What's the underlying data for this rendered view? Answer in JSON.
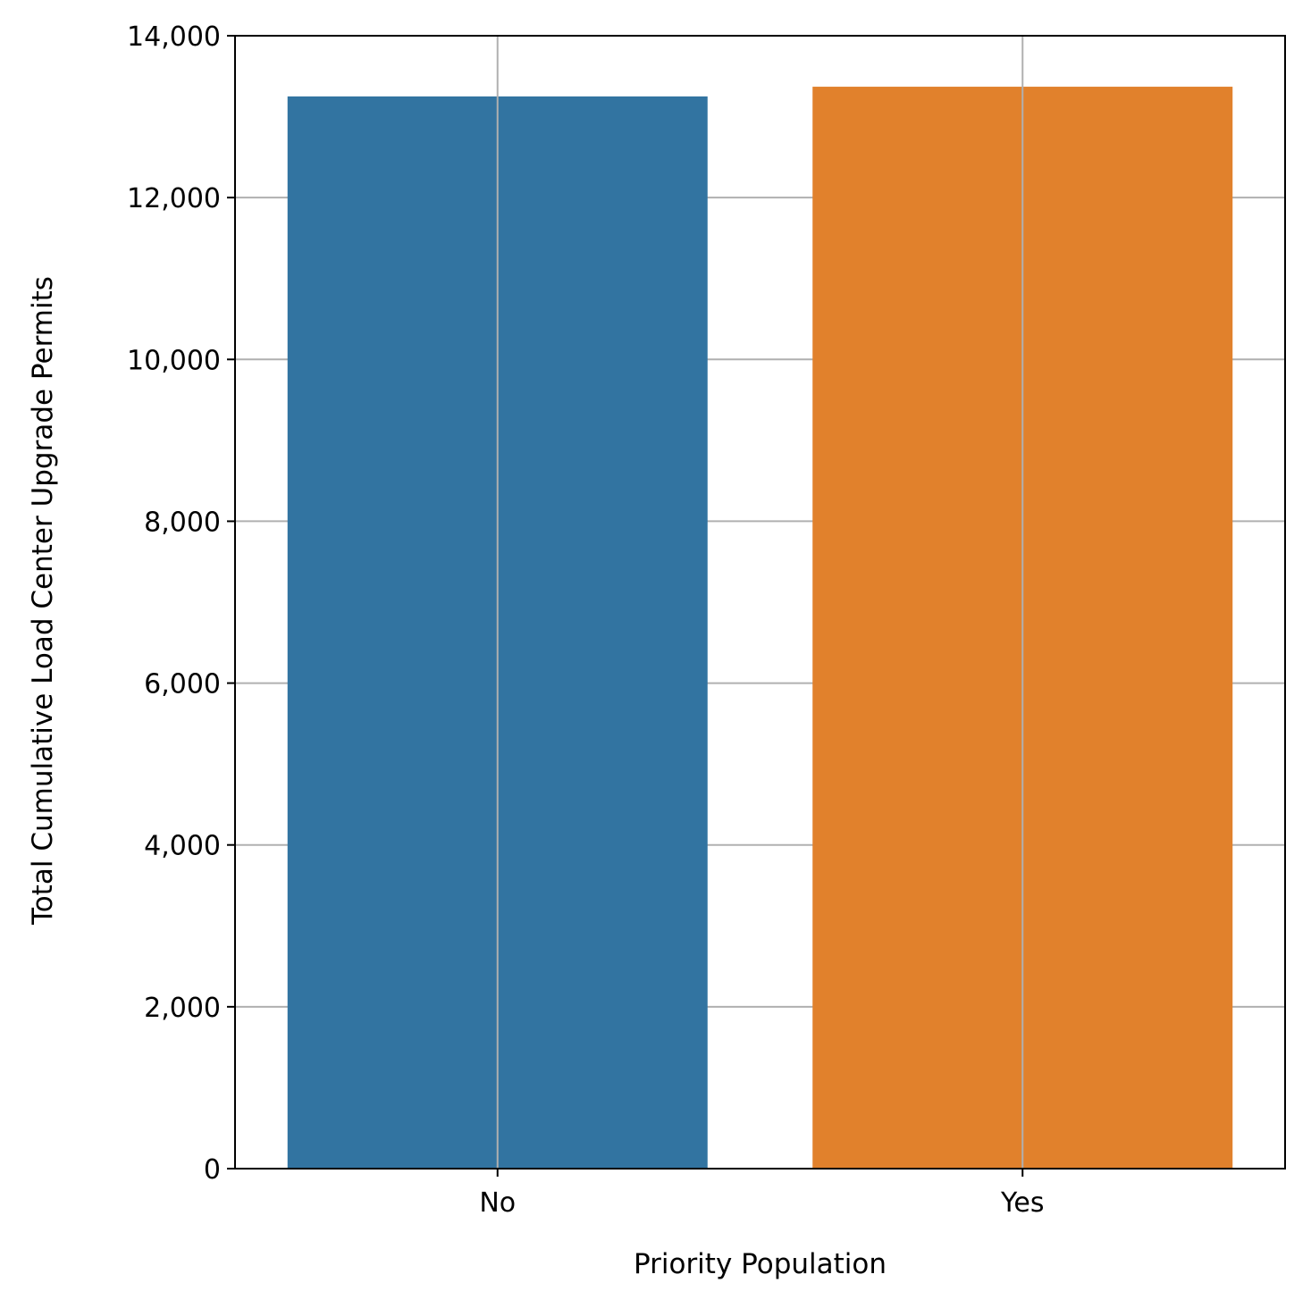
{
  "chart_data": {
    "type": "bar",
    "categories": [
      "No",
      "Yes"
    ],
    "values": [
      13250,
      13370
    ],
    "title": "",
    "xlabel": "Priority Population",
    "ylabel": "Total Cumulative Load Center Upgrade Permits",
    "ylim": [
      0,
      14000
    ],
    "yticks": [
      0,
      2000,
      4000,
      6000,
      8000,
      10000,
      12000,
      14000
    ],
    "ytick_labels": [
      "0",
      "2,000",
      "4,000",
      "6,000",
      "8,000",
      "10,000",
      "12,000",
      "14,000"
    ],
    "bar_colors": [
      "#3274a1",
      "#e1812c"
    ],
    "grid": true,
    "grid_color": "#b0b0b0",
    "legend": "none"
  }
}
